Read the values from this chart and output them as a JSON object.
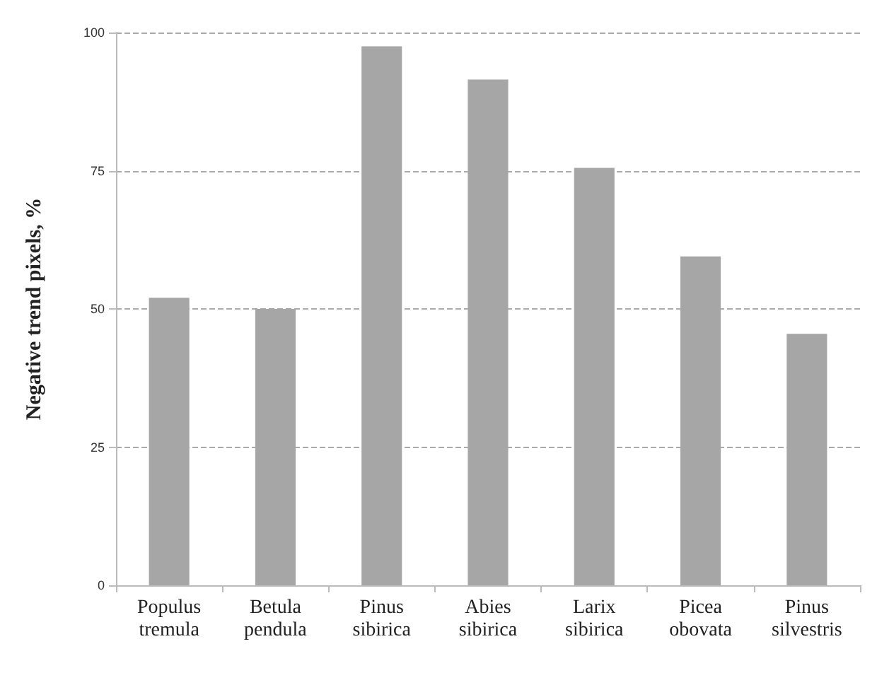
{
  "chart_data": {
    "type": "bar",
    "ylabel": "Negative trend pixels, %",
    "categories": [
      "Populus\ntremula",
      "Betula\npendula",
      "Pinus\nsibirica",
      "Abies\nsibirica",
      "Larix\nsibirica",
      "Picea\nobovata",
      "Pinus\nsilvestris"
    ],
    "values": [
      52,
      50,
      97.5,
      91.5,
      75.5,
      59.5,
      45.5
    ],
    "color": "#a6a6a6",
    "ylim": [
      0,
      100
    ],
    "yticks": [
      0,
      25,
      50,
      75,
      100
    ],
    "grid": "y",
    "line_style": "dashed"
  }
}
